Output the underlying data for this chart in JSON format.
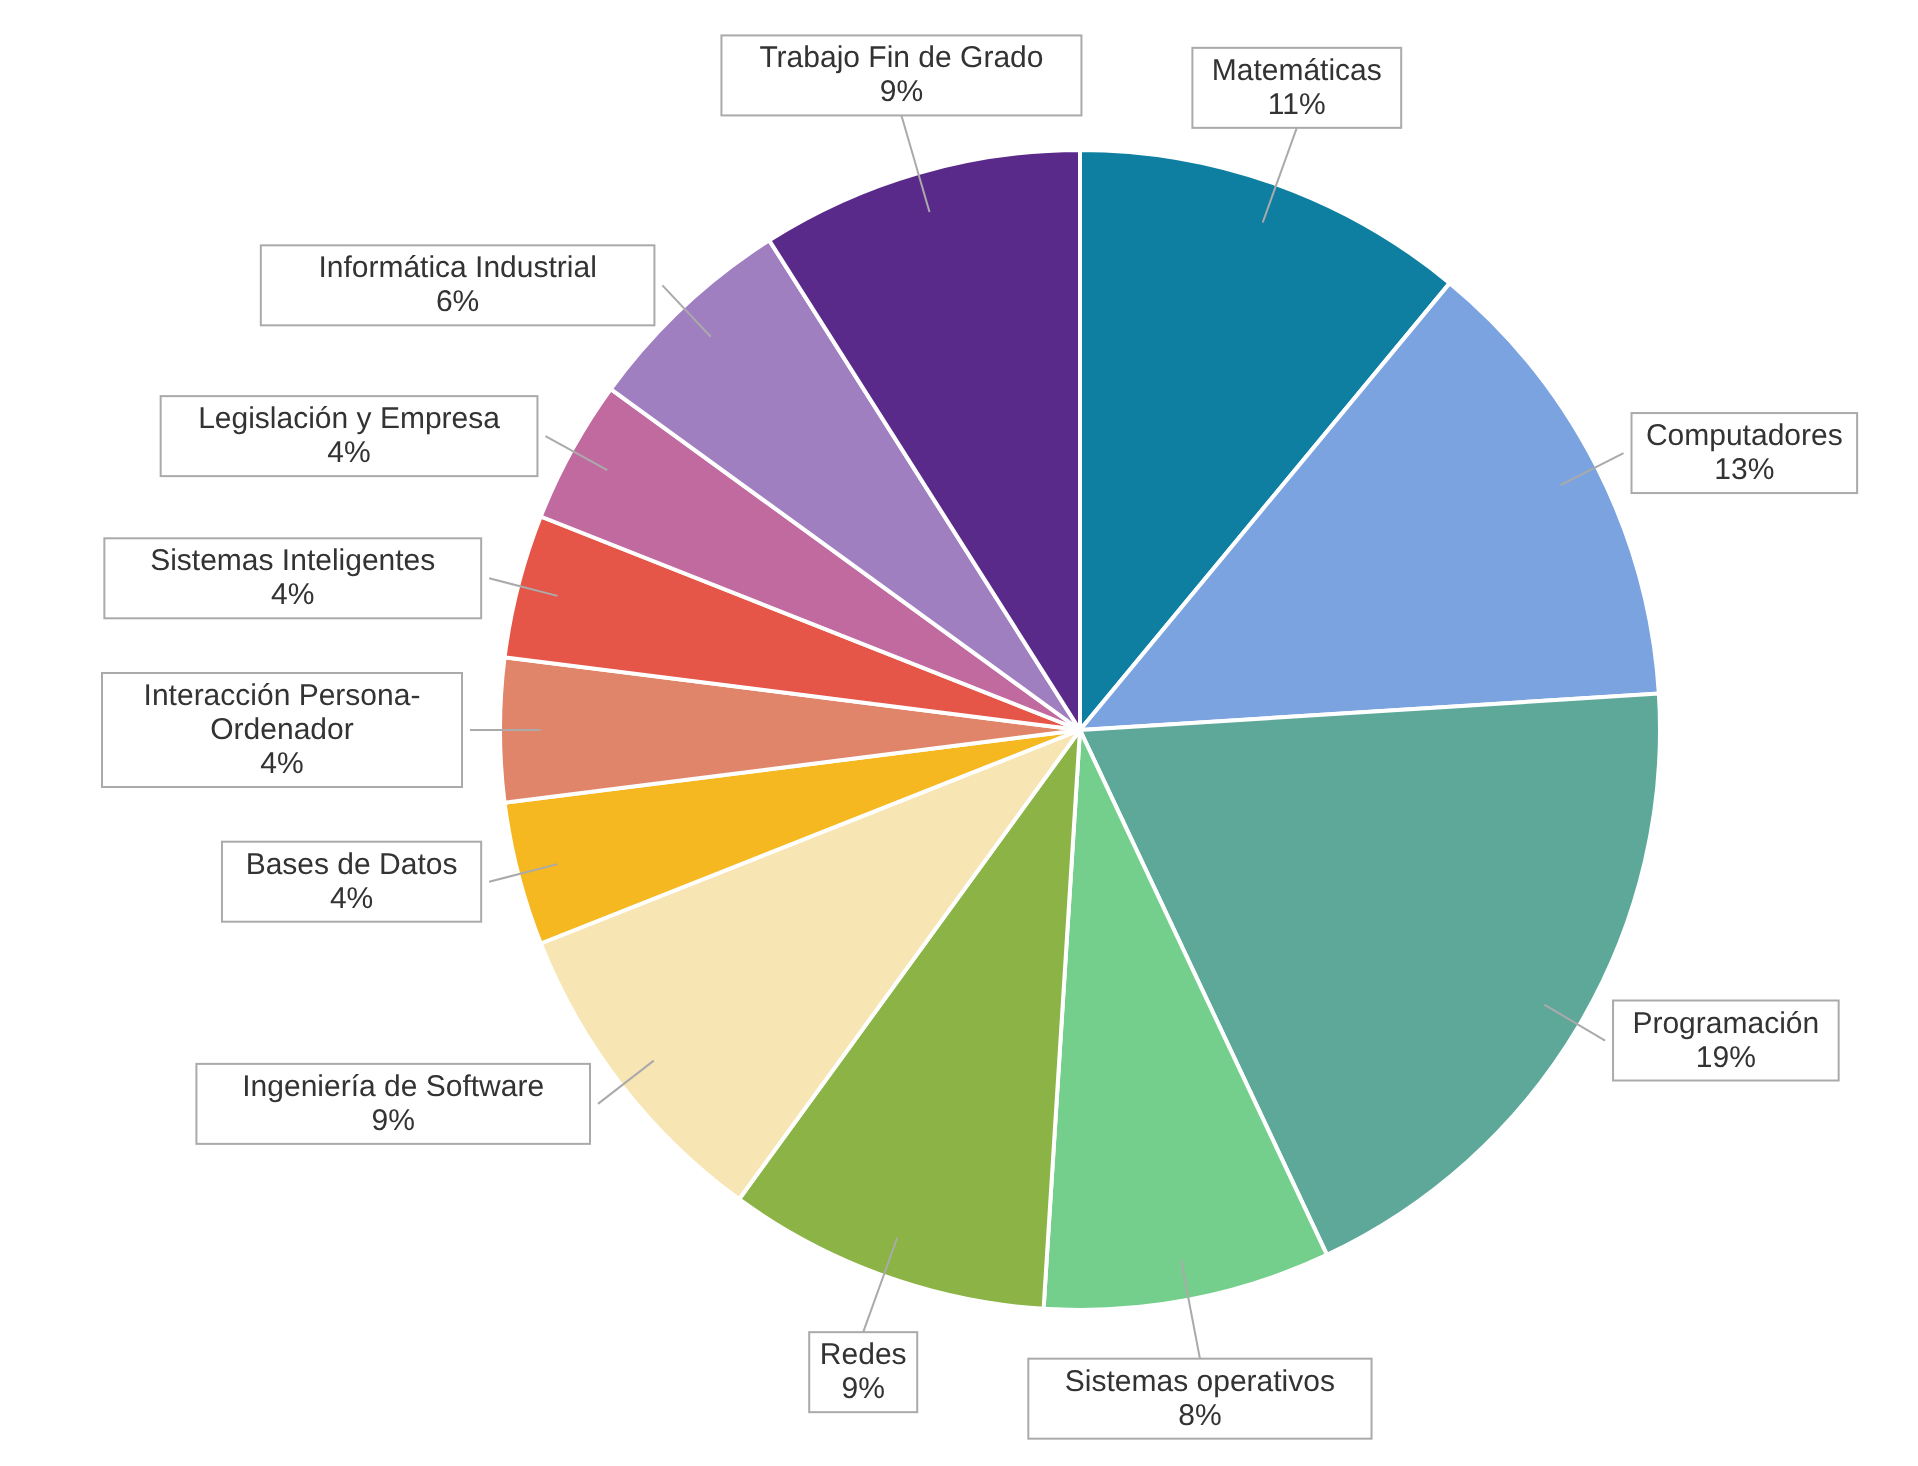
{
  "chart_data": {
    "type": "pie",
    "categories": [
      "Matemáticas",
      "Computadores",
      "Programación",
      "Sistemas operativos",
      "Redes",
      "Ingeniería de Software",
      "Bases de Datos",
      "Interacción Persona-Ordenador",
      "Sistemas Inteligentes",
      "Legislación y Empresa",
      "Informática Industrial",
      "Trabajo Fin de Grado"
    ],
    "values": [
      11,
      13,
      19,
      8,
      9,
      9,
      4,
      4,
      4,
      4,
      6,
      9
    ],
    "value_labels": [
      "11%",
      "13%",
      "19%",
      "8%",
      "9%",
      "9%",
      "4%",
      "4%",
      "4%",
      "4%",
      "6%",
      "9%"
    ],
    "colors": [
      "#0e7fa0",
      "#7ba3e0",
      "#5ea89a",
      "#74cf8c",
      "#8bb346",
      "#f7e5b3",
      "#f5b820",
      "#e0856a",
      "#e55548",
      "#c06aa0",
      "#a07fc0",
      "#5a2a8a"
    ]
  }
}
